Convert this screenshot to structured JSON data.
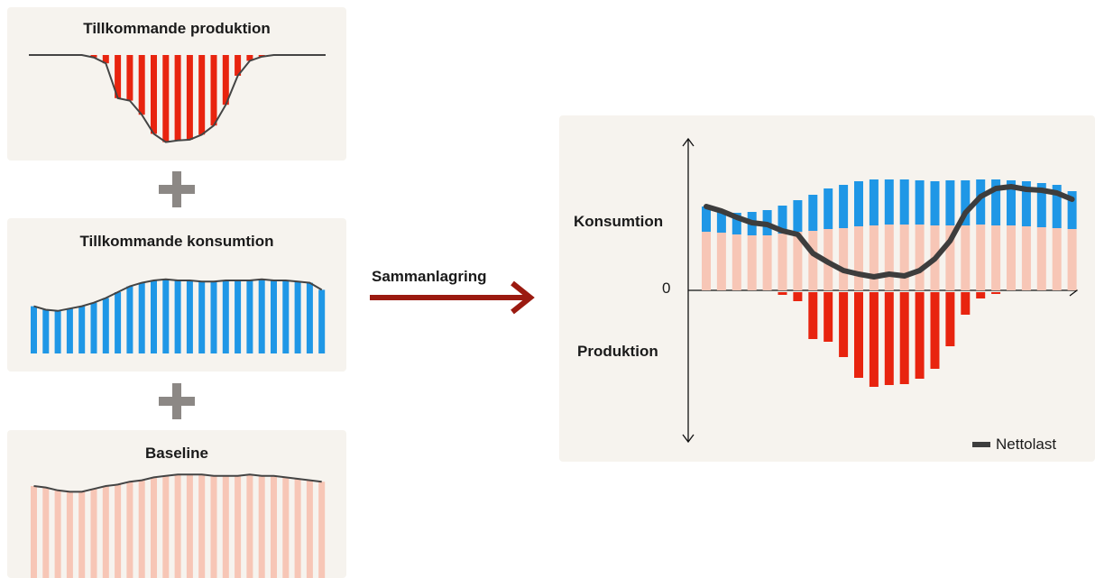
{
  "colors": {
    "production": "#e8240f",
    "consumption": "#1f97e6",
    "baseline": "#f7c6b6",
    "net_line": "#3d3d3d",
    "arrow": "#9b1a10",
    "plus": "#8c8885",
    "panel_bg": "#f6f3ee"
  },
  "panels": {
    "production_title": "Tillkommande produktion",
    "consumption_title": "Tillkommande konsumtion",
    "baseline_title": "Baseline"
  },
  "arrow_label": "Sammanlagring",
  "icons": {
    "plus": "plus-icon",
    "arrow": "arrow-right-icon"
  },
  "result": {
    "y_label_consumption": "Konsumtion",
    "zero_label": "0",
    "y_label_production": "Produktion",
    "legend_label": "Nettolast"
  },
  "chart_data": {
    "type": "bar",
    "series": [
      {
        "name": "Baseline",
        "values": [
          65,
          64,
          62,
          61,
          61,
          63,
          65,
          66,
          68,
          69,
          71,
          72,
          73,
          73,
          73,
          72,
          72,
          72,
          73,
          72,
          72,
          71,
          70,
          69,
          68
        ]
      },
      {
        "name": "Konsumtion",
        "values": [
          28,
          25,
          24,
          26,
          28,
          31,
          35,
          40,
          45,
          48,
          50,
          51,
          50,
          50,
          49,
          49,
          50,
          50,
          50,
          51,
          50,
          50,
          49,
          48,
          42
        ]
      },
      {
        "name": "Produktion",
        "values": [
          0,
          0,
          0,
          0,
          0,
          -3,
          -10,
          -52,
          -55,
          -72,
          -95,
          -105,
          -103,
          -102,
          -96,
          -85,
          -60,
          -25,
          -7,
          -2,
          0,
          0,
          0,
          0,
          0
        ]
      }
    ],
    "line": {
      "name": "Nettolast",
      "values": [
        93,
        88,
        81,
        75,
        73,
        66,
        62,
        41,
        31,
        22,
        18,
        15,
        18,
        16,
        22,
        35,
        55,
        86,
        104,
        113,
        115,
        112,
        111,
        108,
        101
      ]
    },
    "ylabels": [
      "Konsumtion",
      "Produktion"
    ],
    "zero_label": "0",
    "legend": [
      "Nettolast"
    ]
  }
}
